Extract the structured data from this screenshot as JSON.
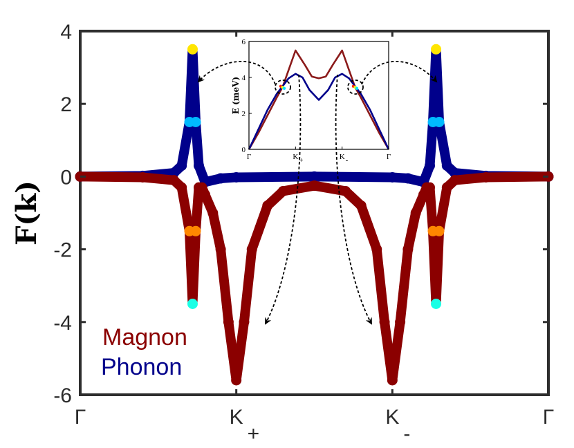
{
  "chart_data": [
    {
      "type": "line",
      "ylabel": "F(k)",
      "xlabel": "",
      "ylim": [
        -6,
        4
      ],
      "xlim": [
        0,
        3
      ],
      "y_ticks": [
        "4",
        "2",
        "0",
        "-2",
        "-4",
        "-6"
      ],
      "x_ticks": [
        {
          "value": 0,
          "label": "Γ",
          "sub": ""
        },
        {
          "value": 1,
          "label": "K",
          "sub": "+"
        },
        {
          "value": 2,
          "label": "K",
          "sub": "-"
        },
        {
          "value": 3,
          "label": "Γ",
          "sub": ""
        }
      ],
      "grid": false,
      "legend": "bottom-left",
      "series": [
        {
          "name": "Magnon",
          "color": "#8b0000",
          "x": [
            0,
            0.4,
            0.6,
            0.65,
            0.7,
            0.72,
            0.74,
            0.76,
            0.78,
            0.8,
            0.85,
            0.9,
            0.95,
            1.0,
            1.05,
            1.1,
            1.2,
            1.3,
            1.5,
            1.7,
            1.8,
            1.9,
            1.95,
            2.0,
            2.05,
            2.1,
            2.15,
            2.2,
            2.22,
            2.24,
            2.26,
            2.28,
            2.3,
            2.35,
            2.4,
            2.6,
            3.0
          ],
          "values": [
            0,
            -0.02,
            -0.1,
            -0.3,
            -1.5,
            -3.5,
            -1.5,
            -0.3,
            -0.3,
            -0.5,
            -1.0,
            -2.0,
            -4.0,
            -5.6,
            -4.0,
            -2.0,
            -0.8,
            -0.4,
            -0.25,
            -0.4,
            -0.8,
            -2.0,
            -4.0,
            -5.6,
            -4.0,
            -2.0,
            -1.0,
            -0.5,
            -0.3,
            -0.3,
            -1.5,
            -3.5,
            -1.5,
            -0.3,
            -0.1,
            -0.02,
            0
          ]
        },
        {
          "name": "Phonon",
          "color": "#00008b",
          "x": [
            0,
            0.4,
            0.6,
            0.65,
            0.7,
            0.72,
            0.74,
            0.76,
            0.8,
            0.9,
            1.0,
            1.5,
            2.0,
            2.1,
            2.2,
            2.24,
            2.26,
            2.28,
            2.3,
            2.35,
            2.4,
            2.6,
            3.0
          ],
          "values": [
            0,
            0.02,
            0.1,
            0.3,
            1.5,
            3.5,
            1.5,
            0.3,
            -0.15,
            -0.05,
            -0.02,
            0,
            -0.02,
            -0.05,
            -0.15,
            0.3,
            1.5,
            3.5,
            1.5,
            0.3,
            0.1,
            0.02,
            0
          ]
        }
      ]
    },
    {
      "type": "line",
      "ylabel": "E (meV)",
      "xlabel": "",
      "ylim": [
        0,
        6
      ],
      "xlim": [
        0,
        3
      ],
      "y_ticks": [
        "0",
        "2",
        "4",
        "6"
      ],
      "x_ticks": [
        {
          "value": 0,
          "label": "Γ",
          "sub": ""
        },
        {
          "value": 1,
          "label": "K",
          "sub": "+"
        },
        {
          "value": 2,
          "label": "K",
          "sub": "-"
        },
        {
          "value": 3,
          "label": "Γ",
          "sub": ""
        }
      ],
      "grid": false,
      "series": [
        {
          "color": "#8b1a1a",
          "x": [
            0,
            0.2,
            0.4,
            0.6,
            0.72,
            0.85,
            1.0,
            1.2,
            1.35,
            1.5,
            1.65,
            1.8,
            2.0,
            2.15,
            2.28,
            2.4,
            2.6,
            2.8,
            3.0
          ],
          "values": [
            0,
            0.9,
            1.9,
            2.9,
            3.45,
            4.4,
            5.5,
            4.7,
            4.05,
            3.95,
            4.05,
            4.7,
            5.5,
            4.4,
            3.45,
            2.9,
            1.9,
            0.9,
            0
          ]
        },
        {
          "color": "#00008b",
          "x": [
            0,
            0.2,
            0.4,
            0.6,
            0.72,
            0.85,
            1.0,
            1.15,
            1.3,
            1.5,
            1.7,
            1.85,
            2.0,
            2.15,
            2.28,
            2.4,
            2.6,
            2.8,
            3.0
          ],
          "values": [
            0,
            1.1,
            2.2,
            3.1,
            3.5,
            3.95,
            4.2,
            4.0,
            3.3,
            2.75,
            3.3,
            4.0,
            4.2,
            3.95,
            3.5,
            3.1,
            2.2,
            1.1,
            0
          ]
        }
      ]
    }
  ]
}
